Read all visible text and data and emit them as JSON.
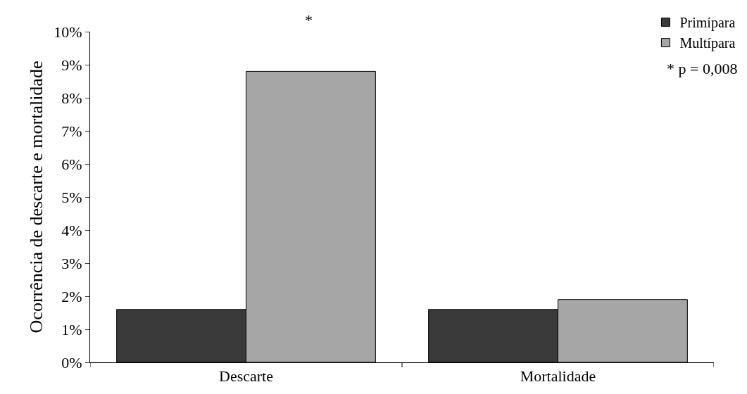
{
  "chart_data": {
    "type": "bar",
    "ylabel": "Ocorrência de descarte e mortalidade",
    "categories": [
      "Descarte",
      "Mortalidade"
    ],
    "series": [
      {
        "name": "Primípara",
        "color": "#3a3a3a",
        "values": [
          1.6,
          1.6
        ]
      },
      {
        "name": "Multípara",
        "color": "#a6a6a6",
        "values": [
          8.8,
          1.9
        ]
      }
    ],
    "ylim": [
      0,
      10
    ],
    "yticks": [
      {
        "value": 0,
        "label": "0%"
      },
      {
        "value": 1,
        "label": "1%"
      },
      {
        "value": 2,
        "label": "2%"
      },
      {
        "value": 3,
        "label": "3%"
      },
      {
        "value": 4,
        "label": "4%"
      },
      {
        "value": 5,
        "label": "5%"
      },
      {
        "value": 6,
        "label": "6%"
      },
      {
        "value": 7,
        "label": "7%"
      },
      {
        "value": 8,
        "label": "8%"
      },
      {
        "value": 9,
        "label": "9%"
      },
      {
        "value": 10,
        "label": "10%"
      }
    ],
    "annotations": [
      "*",
      "* p = 0,008"
    ],
    "legend": "top right"
  }
}
